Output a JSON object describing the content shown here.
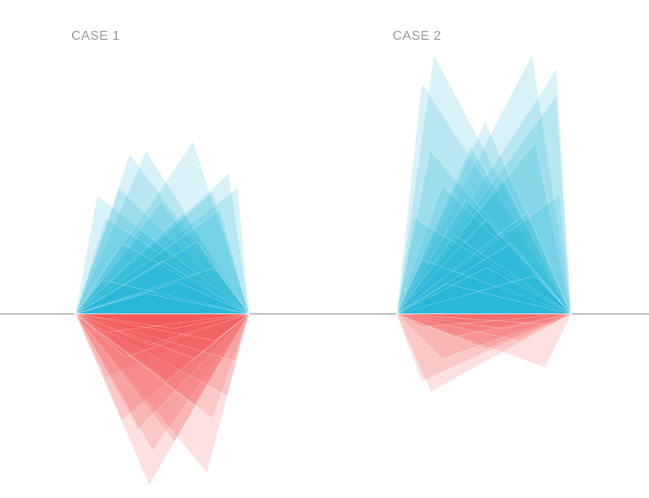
{
  "labels": {
    "case1": "CASE 1",
    "case2": "CASE 2"
  },
  "colors": {
    "positive": "#29b6d6",
    "negative": "#f25a5a",
    "baseline": "#9e9e9e",
    "label": "#9a9a9a"
  }
}
